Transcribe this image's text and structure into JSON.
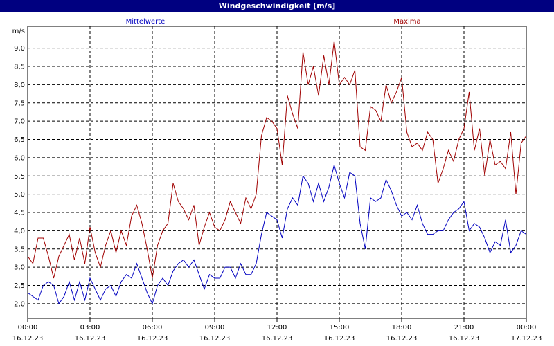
{
  "chart_data": {
    "type": "line",
    "title": "Windgeschwindigkeit [m/s]",
    "ylabel": "m/s",
    "ylim": [
      1.6,
      9.6
    ],
    "yticks": [
      {
        "value": 2,
        "label": "2,0"
      },
      {
        "value": 2.5,
        "label": "2,5"
      },
      {
        "value": 3,
        "label": "3,0"
      },
      {
        "value": 3.5,
        "label": "3,5"
      },
      {
        "value": 4,
        "label": "4,0"
      },
      {
        "value": 4.5,
        "label": "4,5"
      },
      {
        "value": 5,
        "label": "5,0"
      },
      {
        "value": 5.5,
        "label": "5,5"
      },
      {
        "value": 6,
        "label": "6,0"
      },
      {
        "value": 6.5,
        "label": "6,5"
      },
      {
        "value": 7,
        "label": "7,0"
      },
      {
        "value": 7.5,
        "label": "7,5"
      },
      {
        "value": 8,
        "label": "8,0"
      },
      {
        "value": 8.5,
        "label": "8,5"
      },
      {
        "value": 9,
        "label": "9,0"
      }
    ],
    "xlim": [
      "2023-12-16T00:00",
      "2023-12-17T00:00"
    ],
    "xticks": [
      {
        "value": "2023-12-16T00:00",
        "label": [
          "00:00",
          "16.12.23"
        ]
      },
      {
        "value": "2023-12-16T03:00",
        "label": [
          "03:00",
          "16.12.23"
        ]
      },
      {
        "value": "2023-12-16T06:00",
        "label": [
          "06:00",
          "16.12.23"
        ]
      },
      {
        "value": "2023-12-16T09:00",
        "label": [
          "09:00",
          "16.12.23"
        ]
      },
      {
        "value": "2023-12-16T12:00",
        "label": [
          "12:00",
          "16.12.23"
        ]
      },
      {
        "value": "2023-12-16T15:00",
        "label": [
          "15:00",
          "16.12.23"
        ]
      },
      {
        "value": "2023-12-16T18:00",
        "label": [
          "18:00",
          "16.12.23"
        ]
      },
      {
        "value": "2023-12-16T21:00",
        "label": [
          "21:00",
          "16.12.23"
        ]
      },
      {
        "value": "2023-12-17T00:00",
        "label": [
          "00:00",
          "17.12.23"
        ]
      }
    ],
    "grid": true,
    "x": [
      "2023-12-16T00:00",
      "2023-12-16T00:15",
      "2023-12-16T00:30",
      "2023-12-16T00:45",
      "2023-12-16T01:00",
      "2023-12-16T01:15",
      "2023-12-16T01:30",
      "2023-12-16T01:45",
      "2023-12-16T02:00",
      "2023-12-16T02:15",
      "2023-12-16T02:30",
      "2023-12-16T02:45",
      "2023-12-16T03:00",
      "2023-12-16T03:15",
      "2023-12-16T03:30",
      "2023-12-16T03:45",
      "2023-12-16T04:00",
      "2023-12-16T04:15",
      "2023-12-16T04:30",
      "2023-12-16T04:45",
      "2023-12-16T05:00",
      "2023-12-16T05:15",
      "2023-12-16T05:30",
      "2023-12-16T05:45",
      "2023-12-16T06:00",
      "2023-12-16T06:15",
      "2023-12-16T06:30",
      "2023-12-16T06:45",
      "2023-12-16T07:00",
      "2023-12-16T07:15",
      "2023-12-16T07:30",
      "2023-12-16T07:45",
      "2023-12-16T08:00",
      "2023-12-16T08:15",
      "2023-12-16T08:30",
      "2023-12-16T08:45",
      "2023-12-16T09:00",
      "2023-12-16T09:15",
      "2023-12-16T09:30",
      "2023-12-16T09:45",
      "2023-12-16T10:00",
      "2023-12-16T10:15",
      "2023-12-16T10:30",
      "2023-12-16T10:45",
      "2023-12-16T11:00",
      "2023-12-16T11:15",
      "2023-12-16T11:30",
      "2023-12-16T11:45",
      "2023-12-16T12:00",
      "2023-12-16T12:15",
      "2023-12-16T12:30",
      "2023-12-16T12:45",
      "2023-12-16T13:00",
      "2023-12-16T13:15",
      "2023-12-16T13:30",
      "2023-12-16T13:45",
      "2023-12-16T14:00",
      "2023-12-16T14:15",
      "2023-12-16T14:30",
      "2023-12-16T14:45",
      "2023-12-16T15:00",
      "2023-12-16T15:15",
      "2023-12-16T15:30",
      "2023-12-16T15:45",
      "2023-12-16T16:00",
      "2023-12-16T16:15",
      "2023-12-16T16:30",
      "2023-12-16T16:45",
      "2023-12-16T17:00",
      "2023-12-16T17:15",
      "2023-12-16T17:30",
      "2023-12-16T17:45",
      "2023-12-16T18:00",
      "2023-12-16T18:15",
      "2023-12-16T18:30",
      "2023-12-16T18:45",
      "2023-12-16T19:00",
      "2023-12-16T19:15",
      "2023-12-16T19:30",
      "2023-12-16T19:45",
      "2023-12-16T20:00",
      "2023-12-16T20:15",
      "2023-12-16T20:30",
      "2023-12-16T20:45",
      "2023-12-16T21:00",
      "2023-12-16T21:15",
      "2023-12-16T21:30",
      "2023-12-16T21:45",
      "2023-12-16T22:00",
      "2023-12-16T22:15",
      "2023-12-16T22:30",
      "2023-12-16T22:45",
      "2023-12-16T23:00",
      "2023-12-16T23:15",
      "2023-12-16T23:30",
      "2023-12-16T23:45",
      "2023-12-17T00:00"
    ],
    "series": [
      {
        "name": "Mittelwerte",
        "color": "#0000c0",
        "values": [
          2.3,
          2.2,
          2.1,
          2.5,
          2.6,
          2.5,
          2.0,
          2.2,
          2.6,
          2.1,
          2.6,
          2.1,
          2.7,
          2.4,
          2.1,
          2.4,
          2.5,
          2.2,
          2.6,
          2.8,
          2.7,
          3.1,
          2.7,
          2.3,
          2.0,
          2.5,
          2.7,
          2.5,
          2.9,
          3.1,
          3.2,
          3.0,
          3.2,
          2.8,
          2.4,
          2.8,
          2.7,
          2.7,
          3.0,
          3.0,
          2.7,
          3.1,
          2.8,
          2.8,
          3.1,
          3.9,
          4.5,
          4.4,
          4.3,
          3.8,
          4.6,
          4.9,
          4.7,
          5.5,
          5.3,
          4.8,
          5.3,
          4.8,
          5.2,
          5.8,
          5.3,
          4.9,
          5.6,
          5.5,
          4.2,
          3.5,
          4.9,
          4.8,
          4.9,
          5.4,
          5.1,
          4.7,
          4.4,
          4.5,
          4.3,
          4.7,
          4.2,
          3.9,
          3.9,
          4.0,
          4.0,
          4.3,
          4.5,
          4.6,
          4.8,
          4.0,
          4.2,
          4.1,
          3.8,
          3.4,
          3.7,
          3.6,
          4.3,
          3.4,
          3.6,
          4.0,
          3.9
        ]
      },
      {
        "name": "Maxima",
        "color": "#a00000",
        "values": [
          3.3,
          3.1,
          3.8,
          3.8,
          3.3,
          2.7,
          3.3,
          3.6,
          3.9,
          3.2,
          3.8,
          3.1,
          4.1,
          3.4,
          3.0,
          3.6,
          4.0,
          3.4,
          4.0,
          3.6,
          4.4,
          4.7,
          4.2,
          3.5,
          2.7,
          3.6,
          4.0,
          4.2,
          5.3,
          4.8,
          4.6,
          4.3,
          4.7,
          3.6,
          4.1,
          4.5,
          4.1,
          4.0,
          4.3,
          4.8,
          4.5,
          4.2,
          4.9,
          4.6,
          5.0,
          6.6,
          7.1,
          7.0,
          6.8,
          5.8,
          7.7,
          7.2,
          6.8,
          8.9,
          8.0,
          8.5,
          7.7,
          8.8,
          8.0,
          9.2,
          8.0,
          8.2,
          8.0,
          8.4,
          6.3,
          6.2,
          7.4,
          7.3,
          7.0,
          8.0,
          7.5,
          7.8,
          8.2,
          6.7,
          6.3,
          6.4,
          6.2,
          6.7,
          6.5,
          5.3,
          5.7,
          6.2,
          5.9,
          6.5,
          6.8,
          7.8,
          6.2,
          6.8,
          5.5,
          6.5,
          5.8,
          5.9,
          5.7,
          6.7,
          5.0,
          6.4,
          6.6
        ]
      }
    ]
  }
}
